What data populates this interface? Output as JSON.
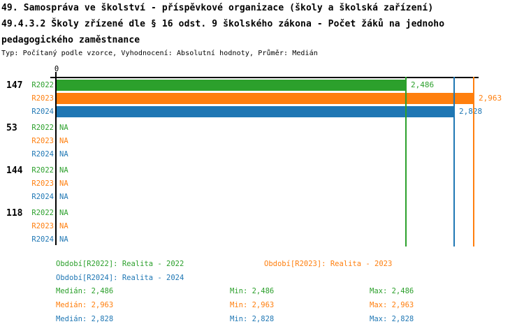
{
  "header": {
    "title_lines": [
      "49. Samospráva ve školství - příspěvkové organizace (školy a školská zařízení)",
      "49.4.3.2 Školy zřízené dle § 16 odst. 9 školského zákona - Počet žáků na jednoho",
      "pedagogického zaměstnance"
    ],
    "subtitle": "Typ: Počítaný podle vzorce, Vyhodnocení: Absolutní hodnoty, Průměr: Medián"
  },
  "colors": {
    "green": "#2ca02c",
    "orange": "#ff7f0e",
    "blue": "#1f77b4",
    "axis": "#000000"
  },
  "chart_data": {
    "type": "bar",
    "orientation": "horizontal",
    "title": "49.4.3.2 Školy zřízené dle § 16 odst. 9 školského zákona - Počet žáků na jednoho pedagogického zaměstnance",
    "x_origin_label": "0",
    "xlim": [
      0,
      3.0
    ],
    "value_format": "czech decimal comma",
    "grid": false,
    "series": [
      {
        "name": "R2022",
        "color_key": "green",
        "legend": "Období[R2022]: Realita - 2022",
        "median": 2.486,
        "min": 2.486,
        "max": 2.486
      },
      {
        "name": "R2023",
        "color_key": "orange",
        "legend": "Období[R2023]: Realita - 2023",
        "median": 2.963,
        "min": 2.963,
        "max": 2.963
      },
      {
        "name": "R2024",
        "color_key": "blue",
        "legend": "Období[R2024]: Realita - 2024",
        "median": 2.828,
        "min": 2.828,
        "max": 2.828
      }
    ],
    "groups": [
      {
        "label": "147",
        "values": [
          2.486,
          2.963,
          2.828
        ],
        "display": [
          "2,486",
          "2,963",
          "2,828"
        ]
      },
      {
        "label": "53",
        "values": [
          null,
          null,
          null
        ],
        "display": [
          "NA",
          "NA",
          "NA"
        ]
      },
      {
        "label": "144",
        "values": [
          null,
          null,
          null
        ],
        "display": [
          "NA",
          "NA",
          "NA"
        ]
      },
      {
        "label": "118",
        "values": [
          null,
          null,
          null
        ],
        "display": [
          "NA",
          "NA",
          "NA"
        ]
      }
    ],
    "median_lines": [
      {
        "color_key": "green",
        "value": 2.486
      },
      {
        "color_key": "blue",
        "value": 2.828
      },
      {
        "color_key": "orange",
        "value": 2.963
      }
    ]
  },
  "legend": {
    "items": [
      {
        "text": "Období[R2022]: Realita - 2022",
        "color_key": "green"
      },
      {
        "text": "Období[R2023]: Realita - 2023",
        "color_key": "orange"
      },
      {
        "text": "Období[R2024]: Realita - 2024",
        "color_key": "blue"
      }
    ]
  },
  "stats": {
    "rows": [
      {
        "color_key": "green",
        "median": "Medián: 2,486",
        "min": "Min: 2,486",
        "max": "Max: 2,486"
      },
      {
        "color_key": "orange",
        "median": "Medián: 2,963",
        "min": "Min: 2,963",
        "max": "Max: 2,963"
      },
      {
        "color_key": "blue",
        "median": "Medián: 2,828",
        "min": "Min: 2,828",
        "max": "Max: 2,828"
      }
    ]
  }
}
